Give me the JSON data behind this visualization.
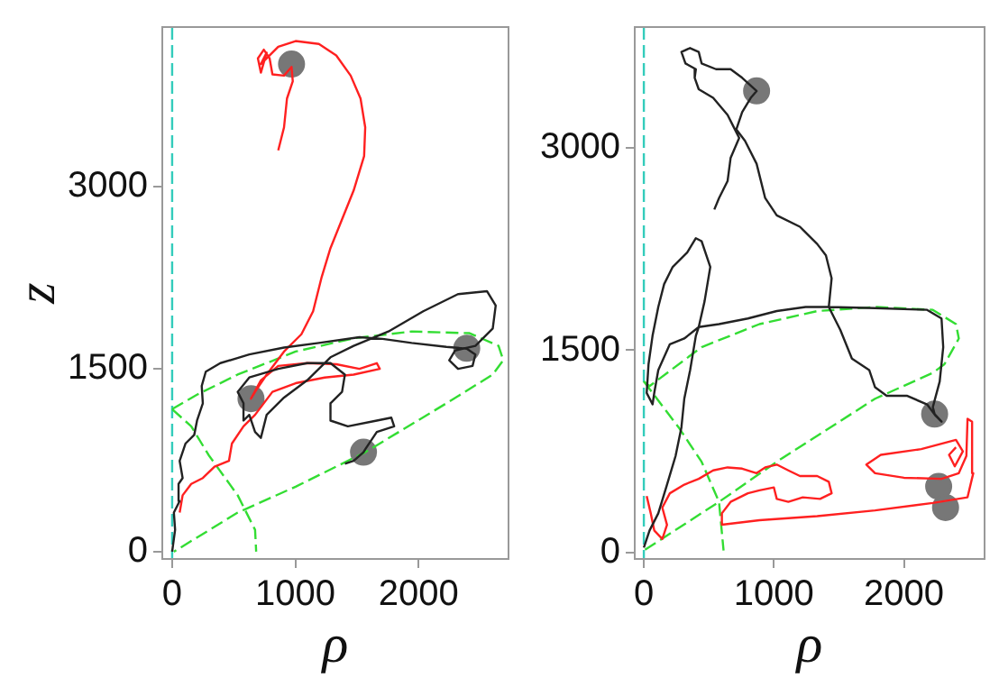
{
  "chart_data": [
    {
      "type": "line",
      "xlabel": "ρ",
      "ylabel": "z",
      "xlim": [
        -80,
        2730
      ],
      "ylim": [
        -60,
        4310
      ],
      "xticks": [
        0,
        1000,
        2000
      ],
      "yticks": [
        0,
        1500,
        3000
      ],
      "grid": false,
      "legend": false,
      "ref_lines": [
        {
          "axis": "x",
          "value": 0,
          "color": "#33ccbb",
          "line_style": "dashed"
        }
      ],
      "series": [
        {
          "type": "line",
          "color": "#222222",
          "line_style": "solid",
          "x": [
            0,
            24,
            14,
            61,
            52,
            85,
            61,
            108,
            179,
            202,
            249,
            240,
            273,
            391,
            626,
            908,
            1191,
            1520,
            1708,
            1944,
            2226,
            2391,
            2461,
            2438,
            2320,
            2249,
            2297,
            2461,
            2602,
            2626,
            2555,
            2320,
            2038,
            1755,
            1473,
            1285,
            1096,
            908,
            767,
            720,
            673,
            626,
            579,
            579,
            532,
            626,
            861,
            1096,
            1285,
            1402,
            1379,
            1285,
            1285,
            1426,
            1661,
            1779,
            1802,
            1661,
            1567,
            1553,
            1473,
            1402
          ],
          "values": [
            0,
            180,
            321,
            416,
            557,
            605,
            746,
            888,
            959,
            1077,
            1219,
            1361,
            1479,
            1549,
            1620,
            1677,
            1715,
            1762,
            1748,
            1715,
            1682,
            1668,
            1620,
            1526,
            1502,
            1573,
            1653,
            1691,
            1833,
            2022,
            2140,
            2116,
            1975,
            1809,
            1691,
            1597,
            1408,
            1266,
            1124,
            935,
            983,
            1124,
            1077,
            1219,
            1313,
            1431,
            1502,
            1549,
            1549,
            1455,
            1313,
            1219,
            1077,
            1030,
            1077,
            1101,
            1030,
            983,
            841,
            817,
            746,
            723
          ]
        },
        {
          "type": "line",
          "color": "#ff2020",
          "line_style": "solid",
          "x": [
            861,
            908,
            932,
            979,
            969,
            908,
            814,
            791,
            744,
            696,
            720,
            767,
            720,
            861,
            1002,
            1191,
            1332,
            1449,
            1529,
            1567,
            1558,
            1473,
            1379,
            1285,
            1214,
            1144,
            1049,
            908,
            767,
            673,
            640,
            720,
            861,
            1096,
            1332,
            1520,
            1661,
            1685,
            1473,
            1238,
            1002,
            814,
            673,
            579,
            485,
            461,
            344,
            249,
            155,
            85,
            61
          ],
          "values": [
            3297,
            3486,
            3723,
            3864,
            3982,
            3911,
            3921,
            4053,
            4124,
            4053,
            3935,
            4100,
            4006,
            4148,
            4195,
            4171,
            4077,
            3911,
            3723,
            3486,
            3250,
            2967,
            2730,
            2494,
            2258,
            1975,
            1786,
            1644,
            1455,
            1313,
            1257,
            1408,
            1526,
            1549,
            1540,
            1502,
            1549,
            1502,
            1455,
            1431,
            1384,
            1313,
            1124,
            1030,
            888,
            746,
            699,
            605,
            557,
            463,
            321
          ]
        },
        {
          "type": "line",
          "color": "#33dd33",
          "line_style": "dashed",
          "x": [
            0,
            202,
            532,
            1002,
            1473,
            1944,
            2414,
            2649,
            2687,
            2602,
            2226,
            1567,
            1002,
            532,
            14
          ],
          "values": [
            1171,
            1290,
            1455,
            1644,
            1753,
            1809,
            1795,
            1691,
            1573,
            1455,
            1219,
            817,
            534,
            321,
            0
          ]
        },
        {
          "type": "line",
          "color": "#33dd33",
          "line_style": "dashed",
          "x": [
            0,
            155,
            296,
            532,
            673,
            682
          ],
          "values": [
            1170,
            1030,
            794,
            463,
            180,
            0
          ]
        },
        {
          "type": "scatter",
          "color": "#777777",
          "marker": "circle",
          "x": [
            969,
            640,
            1553,
            2391
          ],
          "values": [
            4006,
            1257,
            817,
            1671
          ]
        }
      ]
    },
    {
      "type": "line",
      "xlabel": "ρ",
      "xlim": [
        -70,
        2620
      ],
      "ylim": [
        -50,
        3900
      ],
      "xticks": [
        0,
        1000,
        2000
      ],
      "yticks": [
        0,
        1500,
        3000
      ],
      "grid": false,
      "legend": false,
      "ref_lines": [
        {
          "axis": "x",
          "value": 0,
          "color": "#33ccbb",
          "line_style": "dashed"
        }
      ],
      "series": [
        {
          "type": "line",
          "color": "#222222",
          "line_style": "solid",
          "x": [
            0,
            44,
            111,
            178,
            244,
            289,
            311,
            356,
            400,
            422,
            467,
            511,
            444,
            400,
            333,
            222,
            156,
            111,
            67,
            36,
            22,
            67,
            80,
            111,
            200,
            311,
            422,
            578,
            800,
            1022,
            1244,
            1422,
            1778,
            2178,
            2289,
            2302,
            2275,
            2222,
            2236,
            2289,
            2244,
            2178,
            2022,
            1867,
            1778,
            1733,
            1600,
            1511,
            1422,
            1444,
            1400,
            1333,
            1200,
            1022,
            933,
            867,
            778,
            711,
            756,
            822,
            867,
            756,
            667,
            555,
            444,
            422,
            355,
            289,
            320,
            400,
            391,
            422,
            533,
            644,
            689,
            733,
            667,
            644,
            578,
            542
          ],
          "values": [
            34,
            162,
            289,
            502,
            715,
            928,
            1140,
            1353,
            1608,
            1672,
            1864,
            2119,
            2310,
            2332,
            2225,
            2119,
            1991,
            1821,
            1608,
            1396,
            1183,
            1098,
            1183,
            1353,
            1545,
            1587,
            1672,
            1694,
            1736,
            1791,
            1821,
            1821,
            1813,
            1800,
            1736,
            1523,
            1268,
            1077,
            1026,
            970,
            1013,
            1098,
            1162,
            1162,
            1225,
            1353,
            1438,
            1651,
            1821,
            2034,
            2204,
            2289,
            2417,
            2502,
            2630,
            2885,
            3055,
            3140,
            3268,
            3374,
            3425,
            3523,
            3587,
            3587,
            3630,
            3715,
            3744,
            3715,
            3630,
            3587,
            3523,
            3438,
            3374,
            3247,
            3161,
            3076,
            2927,
            2757,
            2630,
            2545
          ]
        },
        {
          "type": "line",
          "color": "#ff2020",
          "line_style": "solid",
          "x": [
            22,
            53,
            80,
            142,
            178,
            142,
            200,
            311,
            422,
            533,
            644,
            756,
            867,
            933,
            1022,
            1111,
            1200,
            1333,
            1422,
            1444,
            1355,
            1222,
            1111,
            1022,
            1000,
            889,
            800,
            667,
            600,
            600,
            889,
            1333,
            1778,
            2222,
            2489,
            2533,
            2524,
            2489,
            2480,
            2422,
            2289,
            2000,
            1778,
            1711,
            1822,
            2133,
            2400,
            2453,
            2391,
            2347,
            2400
          ],
          "values": [
            417,
            289,
            162,
            98,
            204,
            332,
            438,
            502,
            545,
            608,
            630,
            621,
            587,
            630,
            651,
            608,
            566,
            566,
            523,
            438,
            396,
            408,
            374,
            396,
            481,
            460,
            438,
            374,
            289,
            204,
            238,
            268,
            311,
            366,
            408,
            587,
            970,
            991,
            715,
            587,
            545,
            553,
            587,
            651,
            723,
            766,
            834,
            749,
            638,
            723,
            779
          ]
        },
        {
          "type": "line",
          "color": "#33dd33",
          "line_style": "dashed",
          "x": [
            0,
            44,
            444,
            889,
            1333,
            1778,
            2222,
            2400,
            2422,
            2311,
            2222,
            1778,
            1022,
            578,
            0
          ],
          "values": [
            1268,
            1234,
            1523,
            1694,
            1791,
            1821,
            1800,
            1694,
            1587,
            1396,
            1332,
            1140,
            672,
            374,
            13
          ]
        },
        {
          "type": "line",
          "color": "#33dd33",
          "line_style": "dashed",
          "x": [
            0,
            267,
            444,
            578,
            613
          ],
          "values": [
            1268,
            928,
            672,
            374,
            13
          ]
        },
        {
          "type": "scatter",
          "color": "#777777",
          "marker": "circle",
          "x": [
            867,
            2236,
            2267,
            2320
          ],
          "values": [
            3426,
            1026,
            489,
            332
          ]
        }
      ]
    }
  ]
}
